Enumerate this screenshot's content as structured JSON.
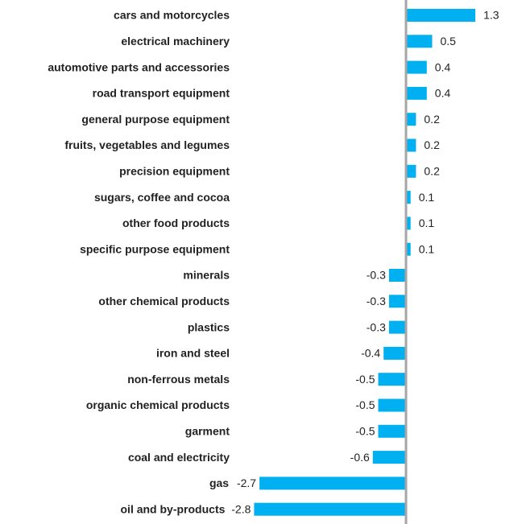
{
  "chart_data": {
    "type": "barh",
    "categories": [
      "cars and motorcycles",
      "electrical machinery",
      "automotive parts and accessories",
      "road transport equipment",
      "general purpose equipment",
      "fruits, vegetables and legumes",
      "precision equipment",
      "sugars, coffee and cocoa",
      "other food products",
      "specific purpose equipment",
      "minerals",
      "other chemical products",
      "plastics",
      "iron and steel",
      "non-ferrous metals",
      "organic chemical products",
      "garment",
      "coal and electricity",
      "gas",
      "oil and by-products"
    ],
    "values": [
      1.3,
      0.5,
      0.4,
      0.4,
      0.2,
      0.2,
      0.2,
      0.1,
      0.1,
      0.1,
      -0.3,
      -0.3,
      -0.3,
      -0.4,
      -0.5,
      -0.5,
      -0.5,
      -0.6,
      -2.7,
      -2.8
    ],
    "color": "#00b0f0"
  }
}
